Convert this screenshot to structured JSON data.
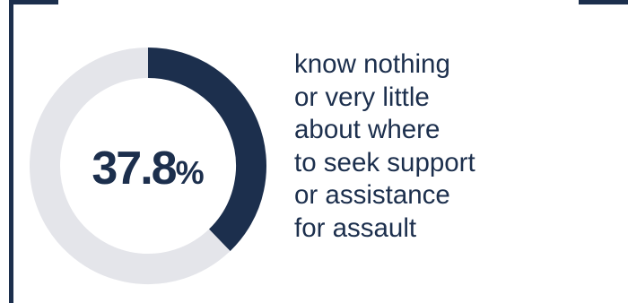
{
  "chart_data": {
    "type": "pie",
    "variant": "donut",
    "values": [
      37.8,
      62.2
    ],
    "center_value": "37.8",
    "center_unit": "%",
    "colors": {
      "highlight": "#1c2f4d",
      "remainder": "#e4e5ea",
      "frame": "#1c2f4d"
    }
  },
  "statement": "know nothing\nor very little\nabout where\nto seek support\nor assistance\nfor assault"
}
